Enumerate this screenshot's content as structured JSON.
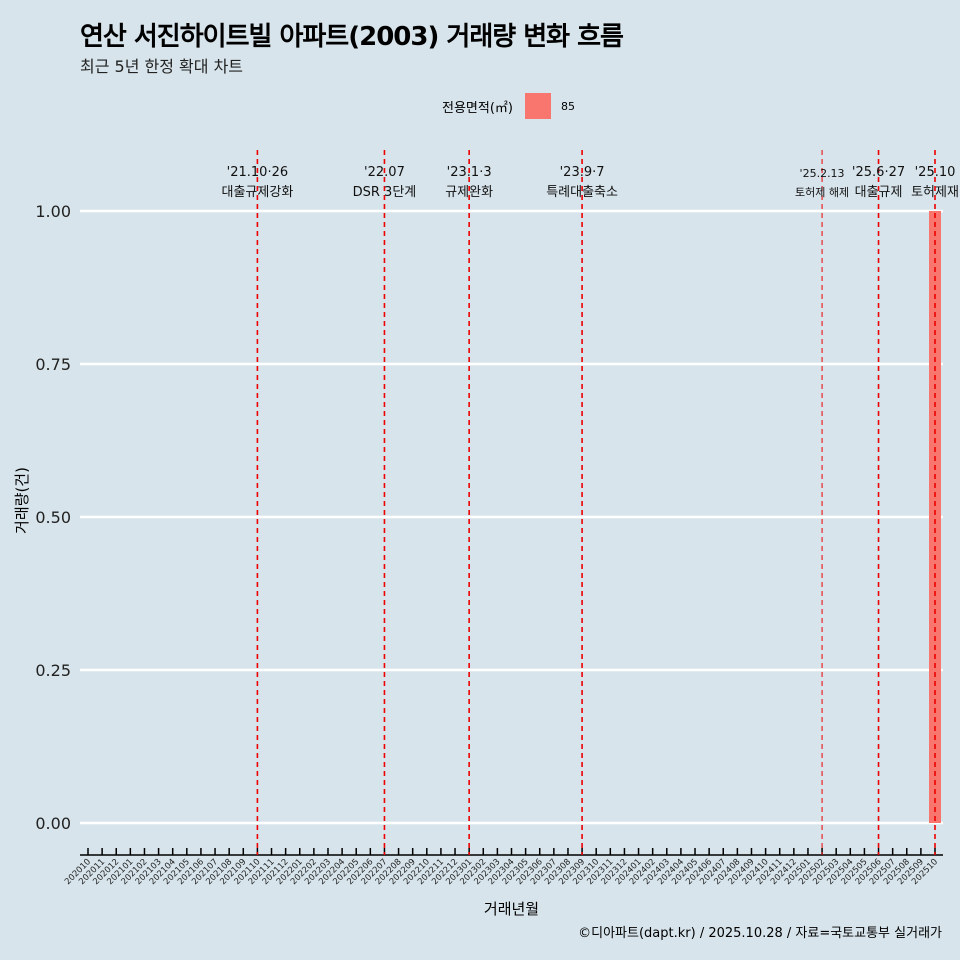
{
  "title": "연산 서진하이트빌 아파트(2003) 거래량 변화 흐름",
  "subtitle": "최근 5년 한정 확대 차트",
  "caption": "©디아파트(dapt.kr) / 2025.10.28 / 자료=국토교통부 실거래가",
  "legend": {
    "title": "전용면적(㎡)",
    "items": [
      {
        "label": "85",
        "color": "#f8766d"
      }
    ]
  },
  "chart_data": {
    "type": "bar",
    "title": "연산 서진하이트빌 아파트(2003) 거래량 변화 흐름",
    "xlabel": "거래년월",
    "ylabel": "거래량(건)",
    "ylim": [
      0,
      1
    ],
    "yticks": [
      "0.00",
      "0.25",
      "0.50",
      "0.75",
      "1.00"
    ],
    "categories": [
      "202010",
      "202011",
      "202012",
      "202101",
      "202102",
      "202103",
      "202104",
      "202105",
      "202106",
      "202107",
      "202108",
      "202109",
      "202110",
      "202111",
      "202112",
      "202201",
      "202202",
      "202203",
      "202204",
      "202205",
      "202206",
      "202207",
      "202208",
      "202209",
      "202210",
      "202211",
      "202212",
      "202301",
      "202302",
      "202303",
      "202304",
      "202305",
      "202306",
      "202307",
      "202308",
      "202309",
      "202310",
      "202311",
      "202312",
      "202401",
      "202402",
      "202403",
      "202404",
      "202405",
      "202406",
      "202407",
      "202408",
      "202409",
      "202410",
      "202411",
      "202412",
      "202501",
      "202502",
      "202503",
      "202504",
      "202505",
      "202506",
      "202507",
      "202508",
      "202509",
      "202510"
    ],
    "series": [
      {
        "name": "85",
        "color": "#f8766d",
        "points": [
          {
            "x": "202510",
            "y": 1
          }
        ]
      }
    ],
    "annotations": [
      {
        "x": "202110",
        "date": "'21.10·26",
        "label": "대출규제강화"
      },
      {
        "x": "202207",
        "date": "'22.07",
        "label": "DSR 3단계"
      },
      {
        "x": "202301",
        "date": "'23.1·3",
        "label": "규제완화"
      },
      {
        "x": "202309",
        "date": "'23.9·7",
        "label": "특례대출축소"
      },
      {
        "x": "202502",
        "date": "'25.2.13",
        "label": "토허제 해제",
        "small": true
      },
      {
        "x": "202506",
        "date": "'25.6·27",
        "label": "대출규제"
      },
      {
        "x": "202510",
        "date": "'25.10",
        "label": "토허제재"
      }
    ]
  }
}
